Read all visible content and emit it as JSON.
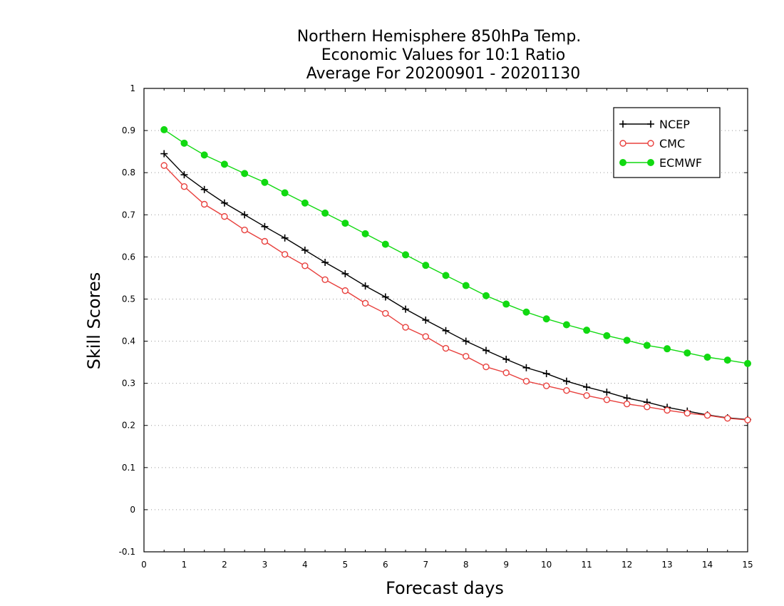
{
  "chart_data": {
    "type": "line",
    "title": [
      "Northern Hemisphere 850hPa Temp.",
      "Economic Values for 10:1 Ratio",
      "Average For 20200901 - 20201130"
    ],
    "xlabel": "Forecast days",
    "ylabel": "Skill Scores",
    "xlim": [
      0,
      15
    ],
    "ylim": [
      -0.1,
      1
    ],
    "xticks": [
      0,
      1,
      2,
      3,
      4,
      5,
      6,
      7,
      8,
      9,
      10,
      11,
      12,
      13,
      14,
      15
    ],
    "xtick_labels": [
      "0",
      "1",
      "2",
      "3",
      "4",
      "5",
      "6",
      "7",
      "8",
      "9",
      "10",
      "11",
      "12",
      "13",
      "14",
      "15"
    ],
    "yticks": [
      -0.1,
      0,
      0.1,
      0.2,
      0.3,
      0.4,
      0.5,
      0.6,
      0.7,
      0.8,
      0.9,
      1
    ],
    "ytick_labels": [
      "-0.1",
      "0",
      "0.1",
      "0.2",
      "0.3",
      "0.4",
      "0.5",
      "0.6",
      "0.7",
      "0.8",
      "0.9",
      "1"
    ],
    "grid": true,
    "legend_position": "top-right",
    "x": [
      0.5,
      1,
      1.5,
      2,
      2.5,
      3,
      3.5,
      4,
      4.5,
      5,
      5.5,
      6,
      6.5,
      7,
      7.5,
      8,
      8.5,
      9,
      9.5,
      10,
      10.5,
      11,
      11.5,
      12,
      12.5,
      13,
      13.5,
      14,
      14.5,
      15
    ],
    "series": [
      {
        "name": "NCEP",
        "color": "#000000",
        "marker": "plus",
        "values": [
          0.845,
          0.795,
          0.76,
          0.728,
          0.7,
          0.672,
          0.645,
          0.616,
          0.587,
          0.56,
          0.531,
          0.505,
          0.476,
          0.45,
          0.425,
          0.4,
          0.378,
          0.357,
          0.337,
          0.323,
          0.305,
          0.291,
          0.279,
          0.265,
          0.255,
          0.243,
          0.234,
          0.225,
          0.218,
          0.214
        ]
      },
      {
        "name": "CMC",
        "color": "#e8403d",
        "marker": "open-circle",
        "values": [
          0.817,
          0.767,
          0.725,
          0.696,
          0.664,
          0.637,
          0.606,
          0.579,
          0.546,
          0.52,
          0.49,
          0.466,
          0.433,
          0.411,
          0.383,
          0.364,
          0.339,
          0.325,
          0.305,
          0.294,
          0.283,
          0.271,
          0.261,
          0.251,
          0.244,
          0.236,
          0.229,
          0.224,
          0.217,
          0.213
        ]
      },
      {
        "name": "ECMWF",
        "color": "#11d911",
        "marker": "filled-circle",
        "values": [
          0.902,
          0.87,
          0.842,
          0.82,
          0.798,
          0.777,
          0.752,
          0.728,
          0.704,
          0.68,
          0.655,
          0.63,
          0.605,
          0.58,
          0.556,
          0.532,
          0.508,
          0.488,
          0.469,
          0.453,
          0.439,
          0.426,
          0.413,
          0.402,
          0.39,
          0.382,
          0.372,
          0.362,
          0.355,
          0.347
        ]
      }
    ]
  }
}
